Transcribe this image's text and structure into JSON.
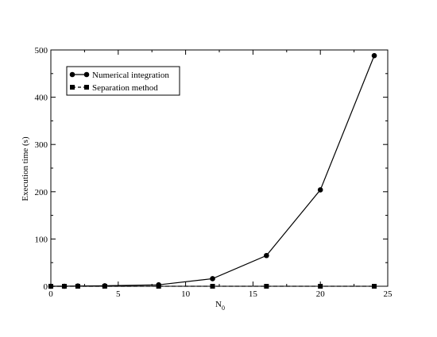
{
  "chart_data": {
    "type": "line",
    "title": "",
    "xlabel": "N",
    "xlabel_subscript": "0",
    "ylabel": "Execution time (s)",
    "xlim": [
      0,
      25
    ],
    "ylim": [
      0,
      500
    ],
    "xticks": [
      0,
      5,
      10,
      15,
      20,
      25
    ],
    "yticks": [
      0,
      100,
      200,
      300,
      400,
      500
    ],
    "grid": false,
    "legend_position": "top-left",
    "series": [
      {
        "name": "Numerical integration",
        "marker": "circle",
        "line": "solid",
        "color": "#000000",
        "x": [
          0,
          1,
          2,
          4,
          8,
          12,
          16,
          20,
          24
        ],
        "y": [
          0,
          0,
          0.5,
          1,
          3,
          16,
          65,
          204,
          488
        ]
      },
      {
        "name": "Separation method",
        "marker": "square",
        "line": "dashed",
        "color": "#000000",
        "x": [
          0,
          1,
          2,
          4,
          8,
          12,
          16,
          20,
          24
        ],
        "y": [
          0,
          0,
          0,
          0,
          0,
          0,
          0,
          0,
          0
        ]
      }
    ]
  }
}
